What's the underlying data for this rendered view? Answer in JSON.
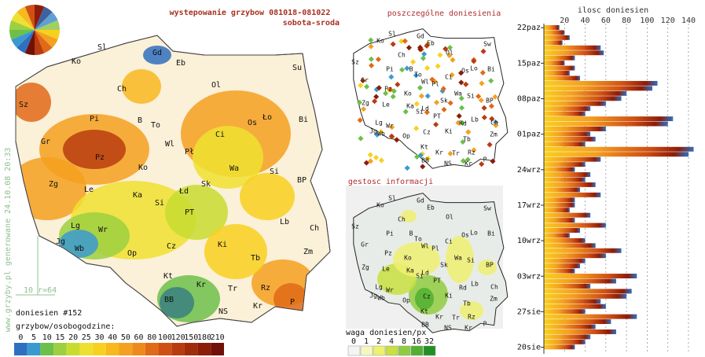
{
  "header": {
    "title": "wystepowanie grzybow 081018-081022",
    "subtitle": "sobota-sroda"
  },
  "main_map": {
    "cities": [
      "Sl",
      "Gd",
      "Eb",
      "Ko",
      "Su",
      "Ch",
      "Ol",
      "Sz",
      "Pi",
      "B",
      "To",
      "Bi",
      "Gr",
      "Wl",
      "Os",
      "Ło",
      "Ci",
      "Pł",
      "Pz",
      "Ko",
      "Wa",
      "Zg",
      "Si",
      "BP",
      "Le",
      "Ka",
      "Łd",
      "Sk",
      "Lb",
      "Si",
      "PT",
      "Ch",
      "Lg",
      "Wr",
      "Jg",
      "Wb",
      "Op",
      "Cz",
      "Ki",
      "Tb",
      "Zm",
      "Kt",
      "Rz",
      "Kr",
      "Tr",
      "BB",
      "NS",
      "Kr",
      "P"
    ],
    "credit": "www.grzyby.pl generowane 24.10.08 20:33",
    "scale_note": "10 r=64",
    "report_count": "doniesien #152",
    "legend_title": "grzybow/osobogodzine:",
    "legend_ticks": [
      0,
      5,
      10,
      15,
      20,
      25,
      30,
      40,
      50,
      60,
      80,
      100,
      120,
      150,
      180,
      210
    ],
    "legend_colors": [
      "#2f6fc0",
      "#3a9ad0",
      "#6cc04a",
      "#9cd040",
      "#c8dc30",
      "#eee030",
      "#f8d020",
      "#f8b820",
      "#f4a020",
      "#ee8a1c",
      "#e06a18",
      "#d05014",
      "#b83c10",
      "#a02c0c",
      "#8c1c08",
      "#701008"
    ]
  },
  "reports_map": {
    "title": "poszczególne doniesienia"
  },
  "density_map": {
    "title": "gestosc informacji",
    "legend_title": "waga doniesien/px",
    "legend_ticks": [
      0,
      1,
      2,
      4,
      8,
      16,
      32
    ],
    "legend_colors": [
      "#f4f4f4",
      "#f4f8c0",
      "#eef070",
      "#c8e040",
      "#90cc40",
      "#50b030",
      "#209020"
    ]
  },
  "small_map_cities": [
    "Sl",
    "Gd",
    "Eb",
    "Ko",
    "Sw",
    "Ch",
    "Ol",
    "Sz",
    "Pi",
    "B",
    "To",
    "Os",
    "Lo",
    "Bi",
    "Gr",
    "Wl",
    "Ci",
    "Pl",
    "Pz",
    "Ko",
    "Wa",
    "Si",
    "BP",
    "Zg",
    "Le",
    "Ka",
    "Ld",
    "Sk",
    "Si",
    "PT",
    "Lb",
    "Lg",
    "Wr",
    "Rd",
    "Ch",
    "Jg",
    "Wb",
    "Op",
    "Cz",
    "Ki",
    "Zm",
    "Tb",
    "Kt",
    "Kr",
    "Tr",
    "Rz",
    "BB",
    "NS",
    "Kr",
    "P"
  ],
  "chart_data": {
    "type": "bar",
    "orientation": "horizontal",
    "title": "ilosc doniesien",
    "categories": [
      "22paz",
      null,
      null,
      null,
      null,
      null,
      null,
      "15paz",
      null,
      null,
      null,
      null,
      null,
      null,
      "08paz",
      null,
      null,
      null,
      null,
      null,
      null,
      "01paz",
      null,
      null,
      null,
      null,
      null,
      null,
      "24wrz",
      null,
      null,
      null,
      null,
      null,
      null,
      "17wrz",
      null,
      null,
      null,
      null,
      null,
      null,
      "10wrz",
      null,
      null,
      null,
      null,
      null,
      null,
      "03wrz",
      null,
      null,
      null,
      null,
      null,
      null,
      "27sie",
      null,
      null,
      null,
      null,
      null,
      null,
      "20sie"
    ],
    "values": [
      15,
      20,
      25,
      18,
      55,
      58,
      30,
      20,
      30,
      25,
      35,
      110,
      105,
      80,
      75,
      60,
      45,
      40,
      125,
      120,
      60,
      45,
      50,
      40,
      145,
      140,
      55,
      40,
      30,
      45,
      40,
      50,
      35,
      55,
      30,
      30,
      25,
      45,
      30,
      60,
      35,
      25,
      40,
      50,
      75,
      60,
      40,
      35,
      30,
      90,
      70,
      45,
      85,
      80,
      55,
      60,
      40,
      90,
      65,
      50,
      70,
      45,
      40,
      30
    ],
    "xlim": [
      0,
      155
    ],
    "xticks": [
      20,
      40,
      60,
      80,
      100,
      120,
      140
    ],
    "grid": true
  }
}
